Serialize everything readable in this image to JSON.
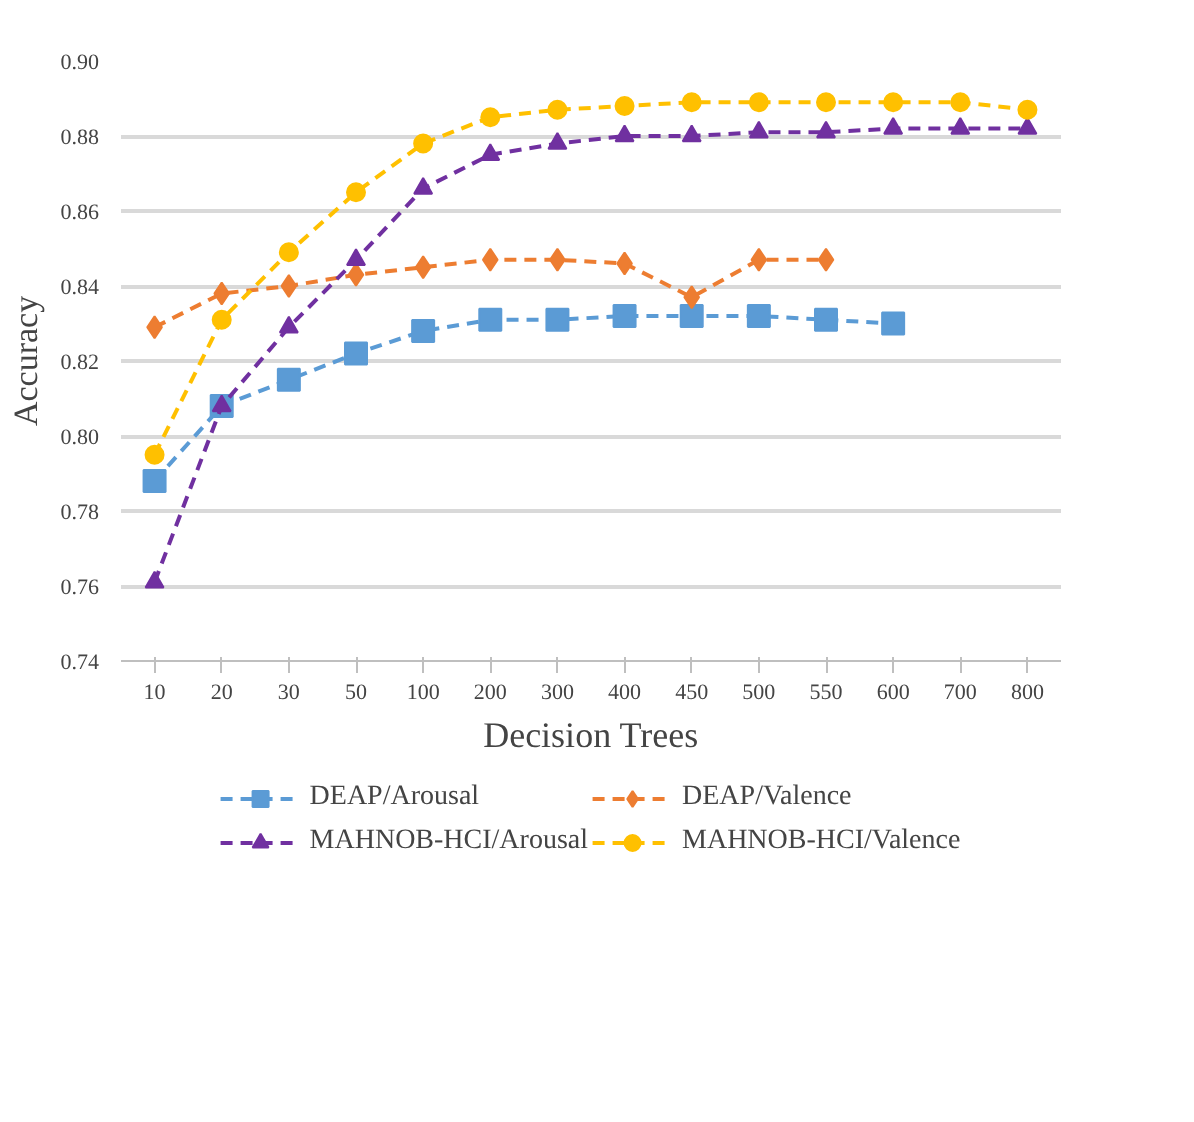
{
  "chart_data": {
    "type": "line",
    "xlabel": "Decision Trees",
    "ylabel": "Accuracy",
    "categories": [
      "10",
      "20",
      "30",
      "50",
      "100",
      "200",
      "300",
      "400",
      "450",
      "500",
      "550",
      "600",
      "700",
      "800"
    ],
    "series": [
      {
        "name": "DEAP/Arousal",
        "color": "#5b9bd5",
        "marker": "square",
        "values": [
          0.788,
          0.808,
          0.815,
          0.822,
          0.828,
          0.831,
          0.831,
          0.832,
          0.832,
          0.832,
          0.831,
          0.83,
          null,
          null
        ]
      },
      {
        "name": "DEAP/Valence",
        "color": "#ed7d31",
        "marker": "diamond",
        "values": [
          0.829,
          0.838,
          0.84,
          0.843,
          0.845,
          0.847,
          0.847,
          0.846,
          0.837,
          0.847,
          0.847,
          null,
          null,
          null
        ]
      },
      {
        "name": "MAHNOB-HCI/Arousal",
        "color": "#7030a0",
        "marker": "triangle",
        "values": [
          0.761,
          0.808,
          0.829,
          0.847,
          0.866,
          0.875,
          0.878,
          0.88,
          0.88,
          0.881,
          0.881,
          0.882,
          0.882,
          0.882
        ]
      },
      {
        "name": "MAHNOB-HCI/Valence",
        "color": "#ffc000",
        "marker": "circle",
        "values": [
          0.795,
          0.831,
          0.849,
          0.865,
          0.878,
          0.885,
          0.887,
          0.888,
          0.889,
          0.889,
          0.889,
          0.889,
          0.889,
          0.887
        ]
      }
    ],
    "ylim": [
      0.74,
      0.9
    ],
    "yticks": [
      {
        "value": 0.74,
        "label": "0.74"
      },
      {
        "value": 0.76,
        "label": "0.76"
      },
      {
        "value": 0.78,
        "label": "0.78"
      },
      {
        "value": 0.8,
        "label": "0.80"
      },
      {
        "value": 0.82,
        "label": "0.82"
      },
      {
        "value": 0.84,
        "label": "0.84"
      },
      {
        "value": 0.86,
        "label": "0.86"
      },
      {
        "value": 0.88,
        "label": "0.88"
      },
      {
        "value": 0.9,
        "label": "0.90"
      }
    ],
    "grid": "y",
    "legend": "bottom",
    "line_style": "dashed"
  }
}
